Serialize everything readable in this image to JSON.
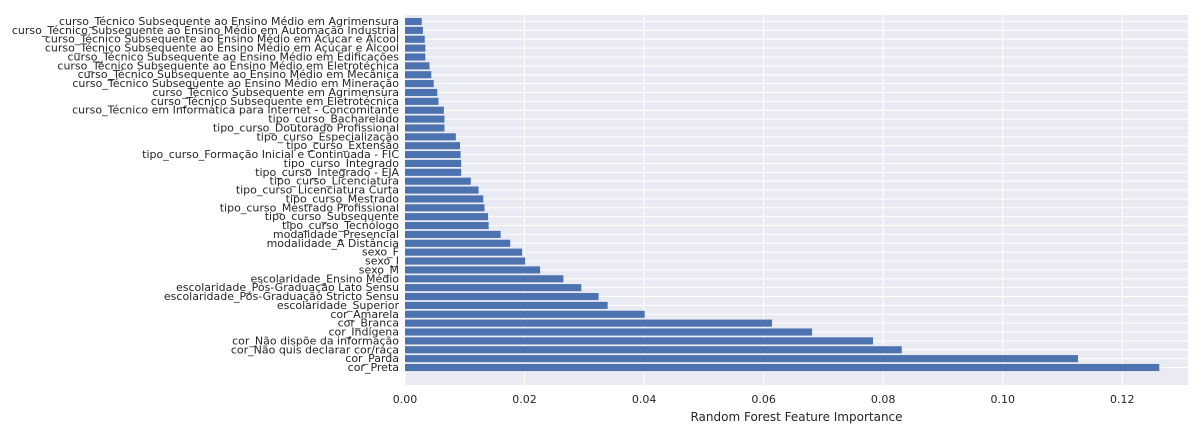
{
  "chart_data": {
    "type": "bar",
    "orientation": "horizontal",
    "xlabel": "Random Forest Feature Importance",
    "ylabel": "",
    "xlim": [
      0,
      0.131
    ],
    "xticks": [
      0.0,
      0.02,
      0.04,
      0.06,
      0.08,
      0.1,
      0.12
    ],
    "xtick_labels": [
      "0.00",
      "0.02",
      "0.04",
      "0.06",
      "0.08",
      "0.10",
      "0.12"
    ],
    "grid": true,
    "bar_color": "#4c72b0",
    "background_color": "#eaeaf2",
    "categories": [
      "cor_Preta",
      "cor_Parda",
      "cor_Não quis declarar cor/raça",
      "cor_Não dispõe da informação",
      "cor_Indígena",
      "cor_Branca",
      "cor_Amarela",
      "escolaridade_Superior",
      "escolaridade_Pós-Graduação Stricto Sensu",
      "escolaridade_Pós-Graduação Lato Sensu",
      "escolaridade_Ensino Médio",
      "sexo_M",
      "sexo_I",
      "sexo_F",
      "modalidade_A Distância",
      "modalidade_Presencial",
      "tipo_curso_Tecnólogo",
      "tipo_curso_Subsequente",
      "tipo_curso_Mestrado Profissional",
      "tipo_curso_Mestrado",
      "tipo_curso_Licenciatura Curta",
      "tipo_curso_Licenciatura",
      "tipo_curso_Integrado - EJA",
      "tipo_curso_Integrado",
      "tipo_curso_Formação Inicial e Continuada - FIC",
      "tipo_curso_Extensão",
      "tipo_curso_Especialização",
      "tipo_curso_Doutorado Profissional",
      "tipo_curso_Bacharelado",
      "curso_Técnico em Informática para Internet - Concomitante",
      "curso_Técnico Subsequente em Eletrotécnica",
      "curso_Técnico Subsequente em Agrimensura",
      "curso_Técnico Subsequente ao Ensino Médio em Mineração",
      "curso_Técnico Subsequente ao Ensino Médio em Mecânica",
      "curso_Técnico Subsequente ao Ensino Médio em Eletrotécnica",
      "curso_Técnico Subsequente ao Ensino Médio em Edificações",
      "curso_Técnico Subsequente ao Ensino Médio em Açúcar e Álcool",
      "curso_Técnico Subsequente ao Ensino Médio em Acucar e Alcool",
      "curso_Técnico Subsequente ao Ensino Médio em Automação Industrial",
      "curso_Técnico Subsequente ao Ensino Médio em Agrimensura"
    ],
    "values": [
      0.1262,
      0.1126,
      0.0831,
      0.0783,
      0.0681,
      0.0614,
      0.0401,
      0.0339,
      0.0324,
      0.0295,
      0.0265,
      0.0226,
      0.0201,
      0.0196,
      0.0176,
      0.016,
      0.014,
      0.0139,
      0.0133,
      0.0131,
      0.0123,
      0.011,
      0.0094,
      0.0094,
      0.0093,
      0.0092,
      0.0085,
      0.0066,
      0.0066,
      0.0065,
      0.0056,
      0.0054,
      0.0048,
      0.0044,
      0.0041,
      0.0034,
      0.0034,
      0.0033,
      0.003,
      0.0028
    ]
  }
}
